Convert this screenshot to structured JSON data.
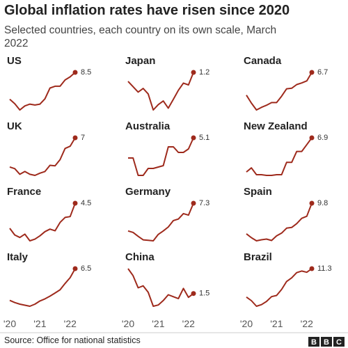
{
  "title": "Global inflation rates have risen since 2020",
  "subtitle": "Selected countries, each country on its own scale, March 2022",
  "source": "Source: Office for national statistics",
  "logo": "BBC",
  "x": [
    "2020-01",
    "2020-03",
    "2020-05",
    "2020-07",
    "2020-09",
    "2020-11",
    "2021-01",
    "2021-03",
    "2021-05",
    "2021-07",
    "2021-09",
    "2021-11",
    "2022-01",
    "2022-03"
  ],
  "xticks": [
    {
      "value": "2020-01",
      "label": "'20"
    },
    {
      "value": "2021-01",
      "label": "'21"
    },
    {
      "value": "2022-01",
      "label": "'22"
    }
  ],
  "chart_data": [
    {
      "type": "line",
      "title": "US",
      "color": "#9e2a1c",
      "values": [
        2.5,
        1.5,
        0.1,
        1.0,
        1.4,
        1.2,
        1.4,
        2.6,
        5.0,
        5.4,
        5.4,
        6.8,
        7.5,
        8.5
      ]
    },
    {
      "type": "line",
      "title": "Japan",
      "color": "#9e2a1c",
      "values": [
        0.7,
        0.4,
        0.1,
        0.3,
        0.0,
        -0.9,
        -0.6,
        -0.4,
        -0.8,
        -0.3,
        0.2,
        0.6,
        0.5,
        1.2
      ]
    },
    {
      "type": "line",
      "title": "Canada",
      "color": "#9e2a1c",
      "values": [
        2.4,
        0.9,
        -0.4,
        0.1,
        0.5,
        1.0,
        1.0,
        2.2,
        3.6,
        3.7,
        4.4,
        4.7,
        5.1,
        6.7
      ]
    },
    {
      "type": "line",
      "title": "UK",
      "color": "#9e2a1c",
      "values": [
        1.8,
        1.5,
        0.5,
        1.0,
        0.5,
        0.3,
        0.7,
        1.0,
        2.1,
        2.0,
        3.1,
        5.1,
        5.5,
        7.0
      ]
    },
    {
      "type": "line",
      "title": "Australia",
      "color": "#9e2a1c",
      "values": [
        2.2,
        2.2,
        -0.3,
        -0.3,
        0.7,
        0.7,
        0.9,
        1.1,
        3.8,
        3.8,
        3.0,
        3.0,
        3.5,
        5.1
      ]
    },
    {
      "type": "line",
      "title": "New Zealand",
      "color": "#9e2a1c",
      "values": [
        1.9,
        2.5,
        1.5,
        1.5,
        1.4,
        1.4,
        1.5,
        1.5,
        3.3,
        3.3,
        4.9,
        4.9,
        5.9,
        6.9
      ]
    },
    {
      "type": "line",
      "title": "France",
      "color": "#9e2a1c",
      "values": [
        1.5,
        0.7,
        0.4,
        0.8,
        0.0,
        0.2,
        0.6,
        1.1,
        1.4,
        1.2,
        2.2,
        2.8,
        2.9,
        4.5
      ]
    },
    {
      "type": "line",
      "title": "Germany",
      "color": "#9e2a1c",
      "values": [
        1.7,
        1.4,
        0.6,
        -0.1,
        -0.2,
        -0.3,
        1.0,
        1.7,
        2.5,
        3.8,
        4.1,
        5.2,
        4.9,
        7.3
      ]
    },
    {
      "type": "line",
      "title": "Spain",
      "color": "#9e2a1c",
      "values": [
        1.1,
        0.0,
        -0.9,
        -0.6,
        -0.4,
        -0.8,
        0.5,
        1.3,
        2.7,
        2.9,
        4.0,
        5.5,
        6.1,
        9.8
      ]
    },
    {
      "type": "line",
      "title": "Italy",
      "color": "#9e2a1c",
      "values": [
        0.5,
        0.1,
        -0.2,
        -0.4,
        -0.6,
        -0.2,
        0.4,
        0.8,
        1.3,
        1.9,
        2.5,
        3.7,
        4.8,
        6.5
      ]
    },
    {
      "type": "line",
      "title": "China",
      "color": "#9e2a1c",
      "values": [
        5.4,
        4.3,
        2.4,
        2.7,
        1.7,
        -0.5,
        -0.3,
        0.4,
        1.3,
        1.0,
        0.7,
        2.3,
        0.9,
        1.5
      ]
    },
    {
      "type": "line",
      "title": "Brazil",
      "color": "#9e2a1c",
      "values": [
        4.2,
        3.3,
        1.9,
        2.3,
        3.1,
        4.3,
        4.6,
        6.1,
        8.1,
        9.0,
        10.3,
        10.7,
        10.4,
        11.3
      ]
    }
  ]
}
